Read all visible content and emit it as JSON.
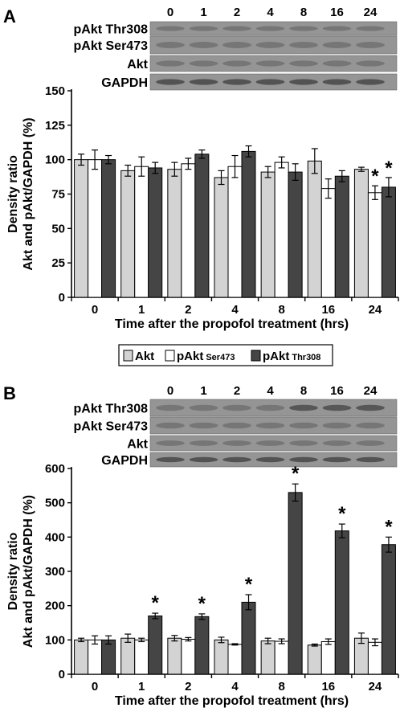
{
  "chart_data": [
    {
      "panel": "A",
      "type": "bar",
      "xlabel": "Time after the propofol treatment (hrs)",
      "ylabel_line1": "Density ratio",
      "ylabel_line2": "Akt and pAkt/GAPDH (%)",
      "ylim": [
        0,
        150
      ],
      "yticks": [
        0,
        25,
        50,
        75,
        100,
        125,
        150
      ],
      "categories": [
        "0",
        "1",
        "2",
        "4",
        "8",
        "16",
        "24"
      ],
      "series": [
        {
          "name": "Akt",
          "color": "#d3d3d3",
          "values": [
            100,
            92,
            93,
            87,
            91,
            99,
            93
          ],
          "errors": [
            4,
            4,
            5,
            5,
            4,
            9,
            1.5
          ],
          "significant": [
            false,
            false,
            false,
            false,
            false,
            false,
            false
          ]
        },
        {
          "name": "pAkt Ser473",
          "color": "#ffffff",
          "values": [
            100,
            95,
            97,
            95,
            98,
            79,
            76
          ],
          "errors": [
            7,
            7,
            4,
            8,
            4,
            7,
            5
          ],
          "significant": [
            false,
            false,
            false,
            false,
            false,
            false,
            true
          ]
        },
        {
          "name": "pAkt Thr308",
          "color": "#454545",
          "values": [
            100,
            94,
            104,
            106,
            91,
            88,
            80
          ],
          "errors": [
            3,
            4,
            3,
            4,
            6,
            4,
            7
          ],
          "significant": [
            false,
            false,
            false,
            false,
            false,
            false,
            true
          ]
        }
      ],
      "blot": {
        "lanes": [
          "0",
          "1",
          "2",
          "4",
          "8",
          "16",
          "24"
        ],
        "rows": [
          "pAkt Thr308",
          "pAkt Ser473",
          "Akt",
          "GAPDH"
        ]
      }
    },
    {
      "panel": "B",
      "type": "bar",
      "xlabel": "Time after the propofol treatment (hrs)",
      "ylabel_line1": "Density ratio",
      "ylabel_line2": "Akt and pAkt/GAPDH (%)",
      "ylim": [
        0,
        600
      ],
      "yticks": [
        0,
        100,
        200,
        300,
        400,
        500,
        600
      ],
      "categories": [
        "0",
        "1",
        "2",
        "4",
        "8",
        "16",
        "24"
      ],
      "series": [
        {
          "name": "Akt",
          "color": "#d3d3d3",
          "values": [
            100,
            105,
            105,
            100,
            97,
            85,
            105
          ],
          "errors": [
            5,
            12,
            8,
            8,
            8,
            3,
            15
          ],
          "significant": [
            false,
            false,
            false,
            false,
            false,
            false,
            false
          ]
        },
        {
          "name": "pAkt Ser473",
          "color": "#ffffff",
          "values": [
            100,
            100,
            102,
            87,
            96,
            95,
            93
          ],
          "errors": [
            12,
            5,
            5,
            2,
            7,
            8,
            10
          ],
          "significant": [
            false,
            false,
            false,
            false,
            false,
            false,
            false
          ]
        },
        {
          "name": "pAkt Thr308",
          "color": "#454545",
          "values": [
            100,
            170,
            168,
            210,
            530,
            418,
            378
          ],
          "errors": [
            12,
            8,
            8,
            22,
            25,
            20,
            22
          ],
          "significant": [
            false,
            true,
            true,
            true,
            true,
            true,
            true
          ]
        }
      ],
      "blot": {
        "lanes": [
          "0",
          "1",
          "2",
          "4",
          "8",
          "16",
          "24"
        ],
        "rows": [
          "pAkt Thr308",
          "pAkt Ser473",
          "Akt",
          "GAPDH"
        ]
      }
    }
  ],
  "legend": {
    "items": [
      {
        "main": "Akt",
        "sub": "",
        "color": "#d3d3d3"
      },
      {
        "main": "pAkt",
        "sub": "Ser473",
        "color": "#ffffff"
      },
      {
        "main": "pAkt",
        "sub": "Thr308",
        "color": "#454545"
      }
    ]
  },
  "significance_marker": "*"
}
